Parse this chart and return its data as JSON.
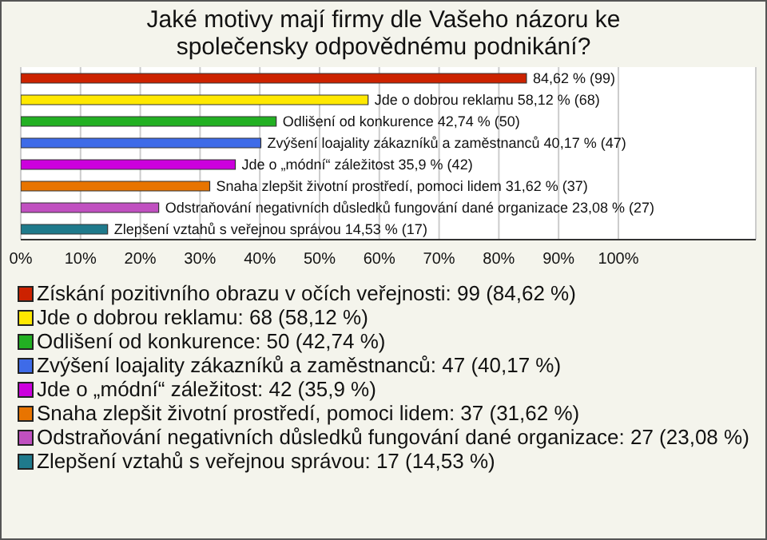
{
  "chart_data": {
    "type": "bar",
    "orientation": "horizontal",
    "title": "Jaké motivy mají firmy dle Vašeho názoru ke společensky odpovědnému podnikání?",
    "categories": [
      null,
      null,
      null,
      null,
      null,
      null,
      null,
      null
    ],
    "values": [
      84.62,
      58.12,
      42.74,
      40.17,
      35.9,
      31.62,
      23.08,
      14.53
    ],
    "colors": [
      "#cc2200",
      "#ffe800",
      "#22b022",
      "#3e6be8",
      "#cc00dd",
      "#e87400",
      "#c050c0",
      "#1f7a8c"
    ],
    "value_labels": [
      "84,62 % (99)",
      "Jde o dobrou reklamu 58,12 % (68)",
      "Odlišení od konkurence 42,74 % (50)",
      "Zvýšení loajality zákazníků a zaměstnanců 40,17 % (47)",
      "Jde o „módní“ záležitost 35,9 % (42)",
      "Snaha zlepšit životní prostředí, pomoci lidem 31,62 % (37)",
      "Odstraňování negativních důsledků fungování dané organizace 23,08 % (27)",
      "Zlepšení vztahů s veřejnou správou 14,53 % (17)"
    ],
    "annotations": [
      "Získání pozitivního obrazu v očích veřejnosti: 99 (84,62 %)",
      "Jde o dobrou reklamu: 68 (58,12 %)",
      "Odlišení od konkurence: 50 (42,74 %)",
      "Zvýšení loajality zákazníků a zaměstnanců: 47 (40,17 %)",
      "Jde o „módní“ záležitost: 42 (35,9 %)",
      "Snaha zlepšit životní prostředí, pomoci lidem: 37 (31,62 %)",
      "Odstraňování negativních důsledků fungování dané organizace: 27 (23,08 %)",
      "Zlepšení vztahů s veřejnou správou: 17 (14,53 %)"
    ],
    "xlim": [
      0,
      123
    ],
    "xticks": [
      {
        "value": 0,
        "label": "0%"
      },
      {
        "value": 10,
        "label": "10%"
      },
      {
        "value": 20,
        "label": "20%"
      },
      {
        "value": 30,
        "label": "30%"
      },
      {
        "value": 40,
        "label": "40%"
      },
      {
        "value": 50,
        "label": "50%"
      },
      {
        "value": 60,
        "label": "60%"
      },
      {
        "value": 70,
        "label": "70%"
      },
      {
        "value": 80,
        "label": "80%"
      },
      {
        "value": 90,
        "label": "90%"
      },
      {
        "value": 100,
        "label": "100%"
      }
    ],
    "grid": "x"
  }
}
